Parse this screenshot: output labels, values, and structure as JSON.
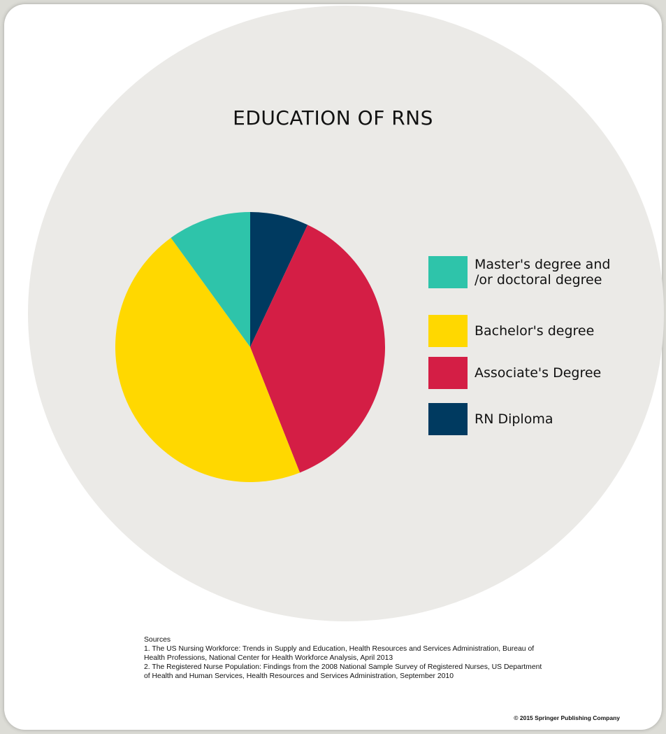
{
  "chart_data": {
    "type": "pie",
    "title": "EDUCATION OF RNS",
    "slices": [
      {
        "label": "RN Diploma",
        "value": 7,
        "color": "#003a60"
      },
      {
        "label": "Associate's Degree",
        "value": 37,
        "color": "#d41e45"
      },
      {
        "label": "Bachelor's degree",
        "value": 46,
        "color": "#ffd800"
      },
      {
        "label": "Master's degree and\n/or doctoral degree",
        "value": 10,
        "color": "#2ec4aa"
      }
    ],
    "legend_order": [
      3,
      2,
      1,
      0
    ],
    "legend_placement": "right"
  },
  "sources": {
    "heading": "Sources",
    "items": [
      "1. The US Nursing Workforce: Trends in Supply and Education, Health Resources and Services Administration, Bureau of\nHealth Professions, National Center for Health Workforce Analysis, April 2013",
      "2. The Registered Nurse Population: Findings from the 2008 National Sample Survey of Registered Nurses, US Department\n of Health and Human Services, Health Resources and Services Administration, September 2010"
    ]
  },
  "copyright": "© 2015 Springer Publishing Company"
}
